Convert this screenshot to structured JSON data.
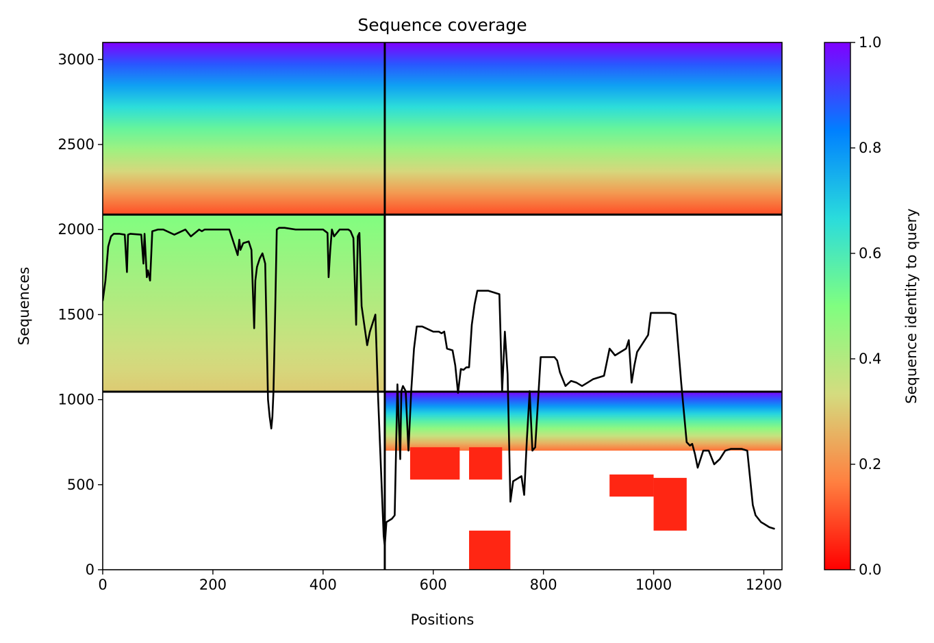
{
  "chart_data": {
    "type": "heatmap",
    "title": "Sequence coverage",
    "xlabel": "Positions",
    "ylabel": "Sequences",
    "colorbar_label": "Sequence identity to query",
    "xlim": [
      0,
      1233
    ],
    "ylim": [
      0,
      3100
    ],
    "x_ticks": [
      0,
      200,
      400,
      600,
      800,
      1000,
      1200
    ],
    "y_ticks": [
      0,
      500,
      1000,
      1500,
      2000,
      2500,
      3000
    ],
    "colorbar_ticks": [
      "0.0",
      "0.2",
      "0.4",
      "0.6",
      "0.8",
      "1.0"
    ],
    "colormap": "rainbow",
    "colormap_stops": [
      "#ff0000",
      "#ff8040",
      "#d4dc7f",
      "#80fe80",
      "#2adcdc",
      "#0080ff",
      "#8000ff"
    ],
    "chain_boundaries_x": [
      512
    ],
    "chain_boundaries_y": [
      1047,
      2088
    ],
    "coverage_blocks": [
      {
        "x": [
          0,
          512
        ],
        "y": [
          2088,
          3100
        ],
        "identity_top": 1.0,
        "identity_bottom": 0.1
      },
      {
        "x": [
          0,
          512
        ],
        "y": [
          1047,
          2088
        ],
        "identity_top": 0.5,
        "identity_bottom": 0.3
      },
      {
        "x": [
          512,
          1233
        ],
        "y": [
          2088,
          3100
        ],
        "identity_top": 1.0,
        "identity_bottom": 0.1
      },
      {
        "x": [
          512,
          1233
        ],
        "y": [
          700,
          1047
        ],
        "identity_top": 1.0,
        "identity_bottom": 0.15
      },
      {
        "x": [
          558,
          648
        ],
        "y": [
          530,
          720
        ],
        "identity_top": 0.05,
        "identity_bottom": 0.05
      },
      {
        "x": [
          665,
          725
        ],
        "y": [
          530,
          720
        ],
        "identity_top": 0.05,
        "identity_bottom": 0.05
      },
      {
        "x": [
          665,
          740
        ],
        "y": [
          0,
          230
        ],
        "identity_top": 0.05,
        "identity_bottom": 0.05
      },
      {
        "x": [
          920,
          1000
        ],
        "y": [
          430,
          560
        ],
        "identity_top": 0.05,
        "identity_bottom": 0.05
      },
      {
        "x": [
          1000,
          1060
        ],
        "y": [
          230,
          540
        ],
        "identity_top": 0.05,
        "identity_bottom": 0.05
      }
    ],
    "coverage_line": {
      "x": [
        0,
        5,
        10,
        15,
        20,
        30,
        40,
        44,
        46,
        50,
        70,
        74,
        76,
        80,
        82,
        86,
        90,
        95,
        100,
        110,
        130,
        150,
        160,
        175,
        180,
        185,
        200,
        230,
        245,
        248,
        250,
        255,
        265,
        270,
        275,
        277,
        280,
        285,
        290,
        295,
        300,
        303,
        306,
        308,
        310,
        313,
        316,
        320,
        322,
        330,
        350,
        380,
        400,
        408,
        410,
        413,
        416,
        420,
        430,
        440,
        446,
        450,
        455,
        460,
        463,
        466,
        470,
        480,
        485,
        490,
        495,
        500,
        510,
        512,
        515,
        525,
        530,
        535,
        540,
        542,
        545,
        550,
        555,
        560,
        565,
        570,
        575,
        580,
        600,
        610,
        615,
        620,
        625,
        635,
        640,
        645,
        650,
        655,
        660,
        665,
        670,
        675,
        680,
        690,
        700,
        720,
        725,
        730,
        735,
        740,
        745,
        750,
        760,
        765,
        770,
        775,
        780,
        785,
        795,
        820,
        825,
        830,
        840,
        850,
        860,
        870,
        880,
        890,
        900,
        910,
        920,
        930,
        950,
        955,
        960,
        965,
        970,
        990,
        995,
        1010,
        1020,
        1030,
        1040,
        1050,
        1060,
        1066,
        1070,
        1075,
        1080,
        1090,
        1100,
        1110,
        1120,
        1130,
        1140,
        1150,
        1160,
        1170,
        1180,
        1185,
        1190,
        1195,
        1200,
        1210,
        1220,
        1233
      ],
      "y": [
        1580,
        1700,
        1900,
        1960,
        1975,
        1975,
        1970,
        1750,
        1970,
        1975,
        1970,
        1800,
        1975,
        1720,
        1760,
        1700,
        1990,
        1995,
        2000,
        2000,
        1970,
        2000,
        1960,
        2000,
        1990,
        2000,
        2000,
        2000,
        1850,
        1940,
        1880,
        1920,
        1930,
        1880,
        1420,
        1700,
        1780,
        1830,
        1860,
        1800,
        1000,
        900,
        830,
        900,
        1050,
        1500,
        2000,
        2010,
        2010,
        2010,
        2000,
        2000,
        2000,
        1980,
        1720,
        1880,
        2000,
        1960,
        2000,
        2000,
        2000,
        1990,
        1950,
        1440,
        1960,
        1980,
        1550,
        1320,
        1400,
        1450,
        1500,
        1000,
        200,
        140,
        280,
        300,
        320,
        1090,
        650,
        1050,
        1080,
        1050,
        700,
        1050,
        1300,
        1430,
        1430,
        1430,
        1400,
        1400,
        1390,
        1400,
        1300,
        1290,
        1200,
        1040,
        1180,
        1175,
        1190,
        1190,
        1440,
        1560,
        1640,
        1640,
        1640,
        1620,
        1050,
        1400,
        1150,
        400,
        520,
        530,
        550,
        440,
        770,
        1050,
        700,
        720,
        1250,
        1250,
        1230,
        1160,
        1080,
        1110,
        1100,
        1080,
        1100,
        1120,
        1130,
        1140,
        1300,
        1260,
        1300,
        1350,
        1100,
        1200,
        1280,
        1380,
        1510,
        1510,
        1510,
        1510,
        1500,
        1100,
        750,
        730,
        740,
        680,
        600,
        700,
        700,
        620,
        650,
        700,
        710,
        710,
        710,
        700,
        380,
        320,
        300,
        280,
        270,
        250,
        240
      ]
    }
  }
}
